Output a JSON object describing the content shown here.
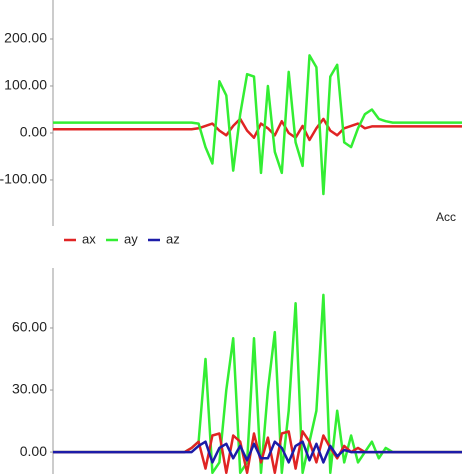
{
  "chart_data": [
    {
      "type": "line",
      "description": "Acc",
      "ylim": [
        -198,
        283
      ],
      "yticks": [
        {
          "value": 200,
          "label": "200.00"
        },
        {
          "value": 100,
          "label": "100.00"
        },
        {
          "value": 0,
          "label": "0.00"
        },
        {
          "value": -100,
          "label": "-100.00"
        }
      ],
      "legend": "bottom-left",
      "series": [
        {
          "name": "ax",
          "color": "#e02424",
          "values": [
            8,
            8,
            8,
            8,
            8,
            8,
            8,
            8,
            8,
            8,
            8,
            8,
            8,
            8,
            8,
            8,
            8,
            8,
            8,
            8,
            8,
            10,
            15,
            20,
            5,
            -5,
            15,
            30,
            5,
            -10,
            20,
            10,
            -5,
            25,
            0,
            -10,
            15,
            -15,
            10,
            30,
            5,
            -5,
            10,
            15,
            20,
            10,
            14,
            14,
            14,
            14,
            14,
            14,
            14,
            14,
            14,
            14,
            14,
            14,
            14,
            14
          ]
        },
        {
          "name": "ay",
          "color": "#33ee33",
          "values": [
            22,
            22,
            22,
            22,
            22,
            22,
            22,
            22,
            22,
            22,
            22,
            22,
            22,
            22,
            22,
            22,
            22,
            22,
            22,
            22,
            22,
            20,
            -30,
            -65,
            110,
            80,
            -80,
            40,
            125,
            120,
            -85,
            100,
            -40,
            -85,
            130,
            -20,
            -70,
            165,
            140,
            -130,
            120,
            145,
            -20,
            -30,
            10,
            40,
            50,
            30,
            25,
            22,
            22,
            22,
            22,
            22,
            22,
            22,
            22,
            22,
            22,
            22
          ]
        },
        {
          "name": "az",
          "color": "#1c1ca8",
          "values": [
            null,
            null,
            null,
            null,
            null,
            null,
            null,
            null,
            null,
            null,
            null,
            null,
            null,
            null,
            null,
            null,
            null,
            null,
            null,
            null,
            null,
            null,
            null,
            null,
            null,
            null,
            null,
            null,
            null,
            null,
            null,
            null,
            null,
            null,
            null,
            null,
            null,
            null,
            null,
            null,
            null,
            null,
            null,
            null,
            null,
            null,
            null,
            null,
            null,
            null,
            null,
            null,
            null,
            null,
            null,
            null,
            null,
            null,
            null,
            null
          ]
        }
      ]
    },
    {
      "type": "line",
      "ylim": [
        -10.6,
        89
      ],
      "yticks": [
        {
          "value": 60,
          "label": "60.00"
        },
        {
          "value": 30,
          "label": "30.00"
        },
        {
          "value": 0,
          "label": "0.00"
        }
      ],
      "series": [
        {
          "color": "#33ee33",
          "values": [
            0,
            0,
            0,
            0,
            0,
            0,
            0,
            0,
            0,
            0,
            0,
            0,
            0,
            0,
            0,
            0,
            0,
            0,
            0,
            0,
            2,
            5,
            45,
            -10,
            -5,
            30,
            55,
            -10,
            -5,
            55,
            -10,
            30,
            58,
            -10,
            20,
            72,
            -10,
            5,
            20,
            76,
            -10,
            20,
            -5,
            8,
            -5,
            0,
            5,
            -3,
            2,
            0,
            0,
            0,
            0,
            0,
            0,
            0,
            0,
            0,
            0,
            0
          ]
        },
        {
          "color": "#e02424",
          "values": [
            0,
            0,
            0,
            0,
            0,
            0,
            0,
            0,
            0,
            0,
            0,
            0,
            0,
            0,
            0,
            0,
            0,
            0,
            0,
            0,
            2,
            5,
            -8,
            8,
            9,
            -10,
            8,
            5,
            -10,
            9,
            -5,
            7,
            -10,
            9,
            10,
            -8,
            10,
            5,
            -5,
            8,
            2,
            -3,
            3,
            0,
            2,
            0,
            0,
            0,
            0,
            0,
            0,
            0,
            0,
            0,
            0,
            0,
            0,
            0,
            0,
            0
          ]
        },
        {
          "color": "#1c1ca8",
          "values": [
            0,
            0,
            0,
            0,
            0,
            0,
            0,
            0,
            0,
            0,
            0,
            0,
            0,
            0,
            0,
            0,
            0,
            0,
            0,
            0,
            0,
            3,
            5,
            -5,
            2,
            4,
            -3,
            3,
            -4,
            4,
            -3,
            -3,
            5,
            2,
            -5,
            3,
            5,
            -4,
            4,
            -5,
            3,
            -2,
            1,
            0,
            0,
            0,
            0,
            0,
            0,
            0,
            0,
            0,
            0,
            0,
            0,
            0,
            0,
            0,
            0,
            0
          ]
        }
      ]
    }
  ]
}
